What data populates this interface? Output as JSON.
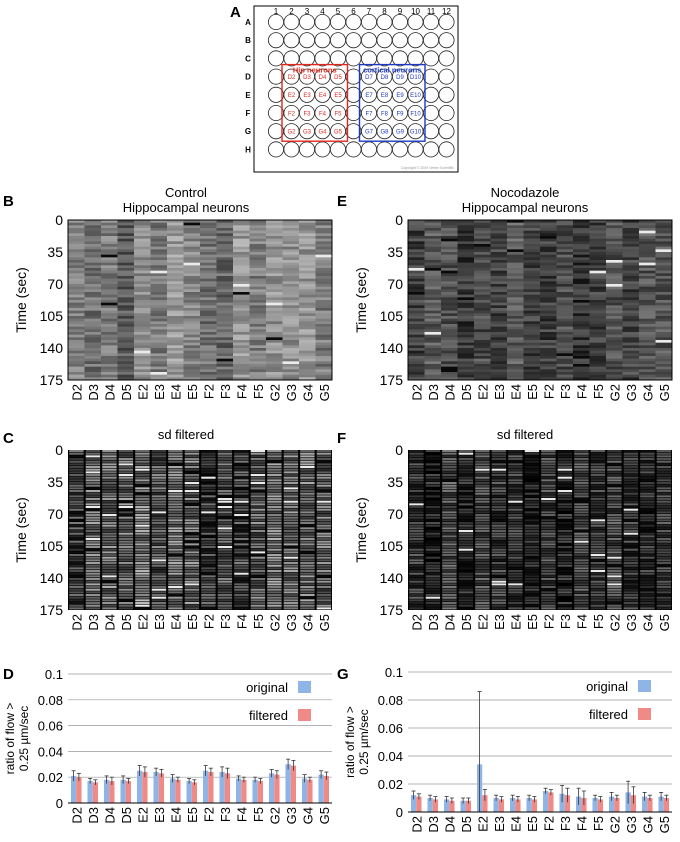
{
  "panel_labels": {
    "a": "A",
    "b": "B",
    "c": "C",
    "d": "D",
    "e": "E",
    "f": "F",
    "g": "G"
  },
  "plate": {
    "columns": [
      "1",
      "2",
      "3",
      "4",
      "5",
      "6",
      "7",
      "8",
      "9",
      "10",
      "11",
      "12"
    ],
    "rows": [
      "A",
      "B",
      "C",
      "D",
      "E",
      "F",
      "G",
      "H"
    ],
    "hip_label": "Hip neurons",
    "cortical_label": "cortical neurons",
    "hip_wells": [
      [
        "D2",
        "D3",
        "D4",
        "D5"
      ],
      [
        "E2",
        "E3",
        "E4",
        "E5"
      ],
      [
        "F2",
        "F3",
        "F4",
        "F5"
      ],
      [
        "G2",
        "G3",
        "G4",
        "G5"
      ]
    ],
    "cortical_wells": [
      [
        "D7",
        "D8",
        "D9",
        "D10"
      ],
      [
        "E7",
        "E8",
        "E9",
        "E10"
      ],
      [
        "F7",
        "F8",
        "F9",
        "F10"
      ],
      [
        "G7",
        "G8",
        "G9",
        "G10"
      ]
    ],
    "copyright": "Copyright © 2009 Vertex Scientific",
    "hip_color": "#e0271e",
    "cortical_color": "#1d39c4"
  },
  "panel_b": {
    "title_line1": "Control",
    "title_line2": "Hippocampal neurons"
  },
  "panel_e": {
    "title_line1": "Nocodazole",
    "title_line2": "Hippocampal neurons"
  },
  "panel_c": {
    "title": "sd filtered"
  },
  "panel_f": {
    "title": "sd filtered"
  },
  "heatmap_axis": {
    "ylabel": "Time (sec)",
    "yticks": [
      "0",
      "35",
      "70",
      "105",
      "140",
      "175"
    ],
    "wells": [
      "D2",
      "D3",
      "D4",
      "D5",
      "E2",
      "E3",
      "E4",
      "E5",
      "F2",
      "F3",
      "F4",
      "F5",
      "G2",
      "G3",
      "G4",
      "G5"
    ]
  },
  "bar_legend": {
    "original": "original",
    "filtered": "filtered",
    "original_color": "#8fb4e6",
    "filtered_color": "#ef8a87"
  },
  "bar_ylabel_line1": "ratio of flow >",
  "bar_ylabel_line2": "0.25 µm/sec",
  "chart_data": [
    {
      "type": "bar",
      "panel": "D",
      "categories": [
        "D2",
        "D3",
        "D4",
        "D5",
        "E2",
        "E3",
        "E4",
        "E5",
        "F2",
        "F3",
        "F4",
        "F5",
        "G2",
        "G3",
        "G4",
        "G5"
      ],
      "yticks": [
        "0",
        "0.02",
        "0.04",
        "0.06",
        "0.08",
        "0.1"
      ],
      "ylim": [
        0,
        0.1
      ],
      "ylabel": "ratio of flow > 0.25 µm/sec",
      "series": [
        {
          "name": "original",
          "values": [
            0.021,
            0.017,
            0.018,
            0.018,
            0.025,
            0.024,
            0.019,
            0.017,
            0.025,
            0.024,
            0.019,
            0.018,
            0.023,
            0.03,
            0.019,
            0.022
          ],
          "errors": [
            0.004,
            0.002,
            0.003,
            0.003,
            0.004,
            0.003,
            0.003,
            0.002,
            0.004,
            0.004,
            0.002,
            0.002,
            0.003,
            0.004,
            0.003,
            0.003
          ]
        },
        {
          "name": "filtered",
          "values": [
            0.02,
            0.016,
            0.017,
            0.017,
            0.024,
            0.023,
            0.018,
            0.016,
            0.024,
            0.023,
            0.018,
            0.017,
            0.022,
            0.029,
            0.018,
            0.021
          ],
          "errors": [
            0.003,
            0.002,
            0.003,
            0.002,
            0.004,
            0.003,
            0.002,
            0.002,
            0.003,
            0.004,
            0.002,
            0.002,
            0.003,
            0.004,
            0.002,
            0.003
          ]
        }
      ]
    },
    {
      "type": "bar",
      "panel": "G",
      "categories": [
        "D2",
        "D3",
        "D4",
        "D5",
        "E2",
        "E3",
        "E4",
        "E5",
        "F2",
        "F3",
        "F4",
        "F5",
        "G2",
        "G3",
        "G4",
        "G5"
      ],
      "yticks": [
        "0",
        "0.02",
        "0.04",
        "0.06",
        "0.08",
        "0.1"
      ],
      "ylim": [
        0,
        0.1
      ],
      "ylabel": "ratio of flow > 0.25 µm/sec",
      "series": [
        {
          "name": "original",
          "values": [
            0.012,
            0.01,
            0.009,
            0.008,
            0.034,
            0.01,
            0.01,
            0.01,
            0.015,
            0.013,
            0.011,
            0.01,
            0.011,
            0.014,
            0.011,
            0.011
          ],
          "errors": [
            0.003,
            0.002,
            0.002,
            0.002,
            0.052,
            0.002,
            0.002,
            0.002,
            0.002,
            0.006,
            0.006,
            0.002,
            0.003,
            0.008,
            0.003,
            0.003
          ]
        },
        {
          "name": "filtered",
          "values": [
            0.011,
            0.009,
            0.008,
            0.008,
            0.012,
            0.009,
            0.009,
            0.009,
            0.014,
            0.012,
            0.01,
            0.009,
            0.01,
            0.012,
            0.01,
            0.01
          ],
          "errors": [
            0.002,
            0.002,
            0.002,
            0.002,
            0.004,
            0.002,
            0.002,
            0.002,
            0.002,
            0.005,
            0.005,
            0.002,
            0.002,
            0.006,
            0.002,
            0.002
          ]
        }
      ]
    }
  ]
}
